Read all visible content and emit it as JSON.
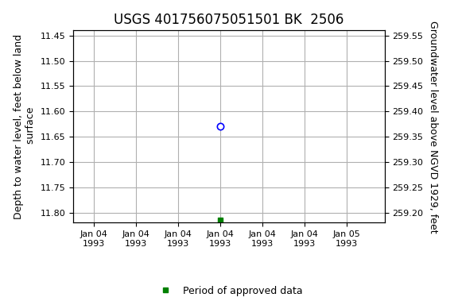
{
  "chart_data": {
    "type": "scatter",
    "title": "USGS 401756075051501 BK  2506",
    "y_label": "Depth to water level, feet below land\n surface",
    "y2_label": "Groundwater level above NGVD 1929, feet",
    "x": [
      0.5
    ],
    "series": [
      {
        "color": "blue",
        "marker": "circle",
        "values": [
          11.63
        ]
      },
      {
        "name": "Period of approved data",
        "color": "#008000",
        "marker": "square",
        "values": [
          11.815
        ]
      }
    ],
    "xlim": [
      -0.08,
      1.15
    ],
    "xticks": [
      {
        "value": 0.0,
        "label": "Jan 04\n1993"
      },
      {
        "value": 0.167,
        "label": "Jan 04\n1993"
      },
      {
        "value": 0.333,
        "label": "Jan 04\n1993"
      },
      {
        "value": 0.5,
        "label": "Jan 04\n1993"
      },
      {
        "value": 0.667,
        "label": "Jan 04\n1993"
      },
      {
        "value": 0.833,
        "label": "Jan 04\n1993"
      },
      {
        "value": 1.0,
        "label": "Jan 05\n1993"
      }
    ],
    "ylim": [
      11.82,
      11.44
    ],
    "yticks": [
      {
        "value": 11.45,
        "label": "11.45"
      },
      {
        "value": 11.5,
        "label": "11.50"
      },
      {
        "value": 11.55,
        "label": "11.55"
      },
      {
        "value": 11.6,
        "label": "11.60"
      },
      {
        "value": 11.65,
        "label": "11.65"
      },
      {
        "value": 11.7,
        "label": "11.70"
      },
      {
        "value": 11.75,
        "label": "11.75"
      },
      {
        "value": 11.8,
        "label": "11.80"
      }
    ],
    "y2lim": [
      259.18,
      259.56
    ],
    "y2ticks": [
      {
        "value": 259.55,
        "label": "259.55"
      },
      {
        "value": 259.5,
        "label": "259.50"
      },
      {
        "value": 259.45,
        "label": "259.45"
      },
      {
        "value": 259.4,
        "label": "259.40"
      },
      {
        "value": 259.35,
        "label": "259.35"
      },
      {
        "value": 259.3,
        "label": "259.30"
      },
      {
        "value": 259.25,
        "label": "259.25"
      },
      {
        "value": 259.2,
        "label": "259.20"
      }
    ],
    "grid": true,
    "legend": "lower center"
  }
}
